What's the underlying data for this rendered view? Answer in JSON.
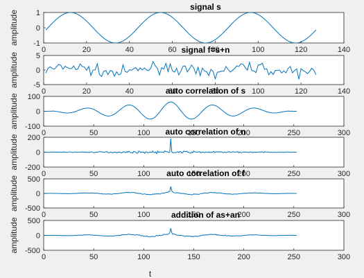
{
  "figure": {
    "background": "#f0f0f0",
    "trace_color": "#0072bd"
  },
  "chart_data": [
    {
      "type": "line",
      "title": "signal s",
      "ylabel": "amplitude",
      "xlabel": "",
      "xlim": [
        0,
        140
      ],
      "ylim": [
        -1,
        1
      ],
      "xticks": [
        0,
        20,
        40,
        60,
        80,
        100,
        120,
        140
      ],
      "yticks": [
        -1,
        0,
        1
      ],
      "series": [
        {
          "kind": "sine",
          "n": 127,
          "amplitude": 1,
          "period": 42
        }
      ]
    },
    {
      "type": "line",
      "title": "signal f=s+n",
      "ylabel": "amplitude",
      "xlabel": "",
      "xlim": [
        0,
        140
      ],
      "ylim": [
        -5,
        5
      ],
      "xticks": [
        0,
        20,
        40,
        60,
        80,
        100,
        120,
        140
      ],
      "yticks": [
        -5,
        0,
        5
      ],
      "series": [
        {
          "kind": "noisy_sine",
          "n": 127,
          "amplitude": 1,
          "period": 42,
          "noise": 1.3
        }
      ]
    },
    {
      "type": "line",
      "title": "auto correlation of s",
      "ylabel": "amplitude",
      "xlabel": "",
      "xlim": [
        0,
        300
      ],
      "ylim": [
        -100,
        100
      ],
      "xticks": [
        0,
        50,
        100,
        150,
        200,
        250,
        300
      ],
      "yticks": [
        -100,
        0,
        100
      ],
      "series": [
        {
          "kind": "xcorr_sine",
          "n": 253,
          "peak": 63,
          "period": 42
        }
      ]
    },
    {
      "type": "line",
      "title": "auto correlation of n",
      "ylabel": "amplitude",
      "xlabel": "",
      "xlim": [
        0,
        300
      ],
      "ylim": [
        -200,
        200
      ],
      "xticks": [
        0,
        50,
        100,
        150,
        200,
        250,
        300
      ],
      "yticks": [
        -200,
        0,
        200
      ],
      "series": [
        {
          "kind": "xcorr_noise",
          "n": 253,
          "peak": 180,
          "noise": 12
        }
      ]
    },
    {
      "type": "line",
      "title": "auto correlation of f",
      "ylabel": "amplitude",
      "xlabel": "",
      "xlim": [
        0,
        300
      ],
      "ylim": [
        -500,
        500
      ],
      "xticks": [
        0,
        50,
        100,
        150,
        200,
        250,
        300
      ],
      "yticks": [
        -500,
        0,
        500
      ],
      "series": [
        {
          "kind": "xcorr_mix",
          "n": 253,
          "peak": 240,
          "wave": 45,
          "period": 42,
          "noise": 15
        }
      ]
    },
    {
      "type": "line",
      "title": "addition of as+an",
      "ylabel": "amplitude",
      "xlabel": "t",
      "xlim": [
        0,
        300
      ],
      "ylim": [
        -500,
        500
      ],
      "xticks": [
        0,
        50,
        100,
        150,
        200,
        250,
        300
      ],
      "yticks": [
        -500,
        0,
        500
      ],
      "series": [
        {
          "kind": "xcorr_mix",
          "n": 253,
          "peak": 240,
          "wave": 45,
          "period": 42,
          "noise": 15
        }
      ]
    }
  ]
}
